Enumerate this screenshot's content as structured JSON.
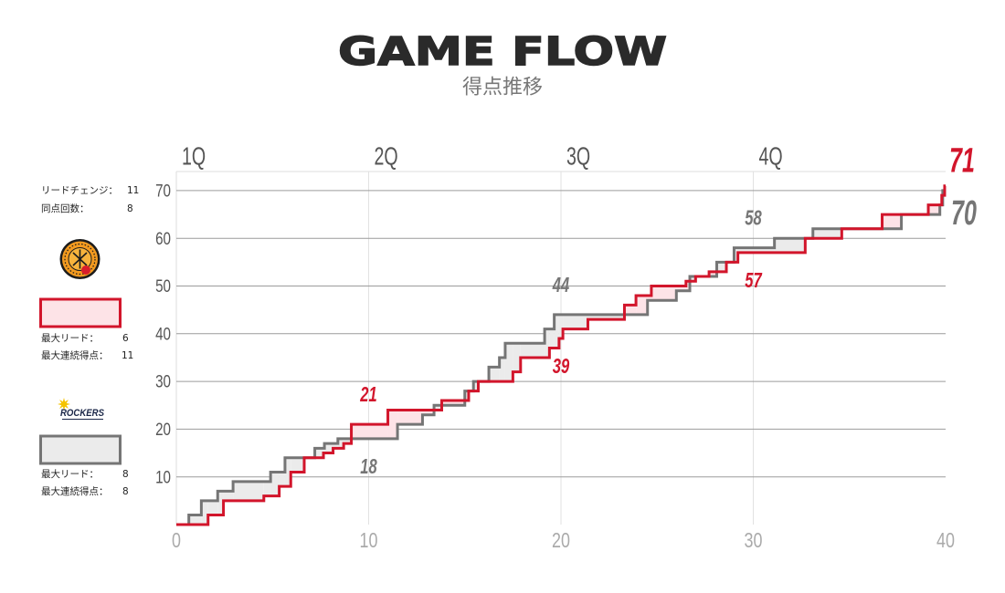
{
  "chart_data": {
    "type": "line",
    "step": true,
    "title": "GAME FLOW",
    "subtitle": "得点推移",
    "quarters": [
      "1Q",
      "2Q",
      "3Q",
      "4Q"
    ],
    "xlim": [
      0,
      40
    ],
    "ylim": [
      0,
      74
    ],
    "x_ticks": [
      0,
      10,
      20,
      30,
      40
    ],
    "y_ticks": [
      10,
      20,
      30,
      40,
      50,
      60,
      70
    ],
    "grid": true,
    "series": [
      {
        "color": "#d2152b",
        "lead_fill": "#fde3e7",
        "points": [
          [
            0,
            0
          ],
          [
            1.65,
            2
          ],
          [
            2.45,
            5
          ],
          [
            4.55,
            6
          ],
          [
            5.35,
            8
          ],
          [
            5.95,
            11
          ],
          [
            6.65,
            14
          ],
          [
            7.65,
            15
          ],
          [
            8.15,
            16
          ],
          [
            8.7,
            17
          ],
          [
            9.1,
            21
          ],
          [
            11.0,
            24
          ],
          [
            13.8,
            26
          ],
          [
            15.2,
            28
          ],
          [
            15.7,
            30
          ],
          [
            17.5,
            32
          ],
          [
            17.9,
            35
          ],
          [
            19.4,
            37
          ],
          [
            19.9,
            39
          ],
          [
            20.1,
            41
          ],
          [
            21.4,
            43
          ],
          [
            23.3,
            46
          ],
          [
            23.9,
            48
          ],
          [
            24.7,
            50
          ],
          [
            26.5,
            51
          ],
          [
            27.0,
            52
          ],
          [
            27.7,
            53
          ],
          [
            28.6,
            55
          ],
          [
            29.2,
            57
          ],
          [
            32.7,
            60
          ],
          [
            34.6,
            62
          ],
          [
            36.7,
            65
          ],
          [
            39.1,
            67
          ],
          [
            39.8,
            69
          ],
          [
            39.95,
            71
          ]
        ]
      },
      {
        "color": "#757575",
        "lead_fill": "#ebebeb",
        "points": [
          [
            0,
            0
          ],
          [
            0.65,
            2
          ],
          [
            1.3,
            5
          ],
          [
            2.15,
            7
          ],
          [
            2.95,
            9
          ],
          [
            4.9,
            11
          ],
          [
            5.65,
            14
          ],
          [
            7.2,
            16
          ],
          [
            7.7,
            17
          ],
          [
            8.4,
            18
          ],
          [
            11.5,
            21
          ],
          [
            12.8,
            23
          ],
          [
            13.4,
            25
          ],
          [
            15.0,
            28
          ],
          [
            15.45,
            30
          ],
          [
            16.25,
            33
          ],
          [
            16.8,
            35
          ],
          [
            17.1,
            38
          ],
          [
            19.15,
            41
          ],
          [
            19.65,
            44
          ],
          [
            24.5,
            47
          ],
          [
            26.0,
            49
          ],
          [
            26.7,
            52
          ],
          [
            28.1,
            55
          ],
          [
            29.0,
            58
          ],
          [
            31.1,
            60
          ],
          [
            33.1,
            62
          ],
          [
            37.7,
            65
          ],
          [
            39.7,
            67
          ],
          [
            39.85,
            70
          ]
        ]
      }
    ],
    "labels": [
      {
        "value": 21,
        "series": 0,
        "x": 10,
        "placement": "above"
      },
      {
        "value": 18,
        "series": 1,
        "x": 10,
        "placement": "below"
      },
      {
        "value": 44,
        "series": 1,
        "x": 20,
        "placement": "above"
      },
      {
        "value": 39,
        "series": 0,
        "x": 20,
        "placement": "below"
      },
      {
        "value": 58,
        "series": 1,
        "x": 30,
        "placement": "above"
      },
      {
        "value": 57,
        "series": 0,
        "x": 30,
        "placement": "below"
      },
      {
        "value": 71,
        "series": 0,
        "x": 40,
        "placement": "end-above"
      },
      {
        "value": 70,
        "series": 1,
        "x": 40,
        "placement": "end-below"
      }
    ]
  },
  "summary": {
    "lead_changes_label": "リードチェンジ：",
    "lead_changes": "11",
    "ties_label": "同点回数：",
    "ties": "8"
  },
  "teams": [
    {
      "max_lead_label": "最大リード：",
      "max_lead": "6",
      "max_run_label": "最大連続得点：",
      "max_run": "11"
    },
    {
      "max_lead_label": "最大リード：",
      "max_lead": "8",
      "max_run_label": "最大連続得点：",
      "max_run": "8",
      "logo_text": "ROCKERS"
    }
  ]
}
